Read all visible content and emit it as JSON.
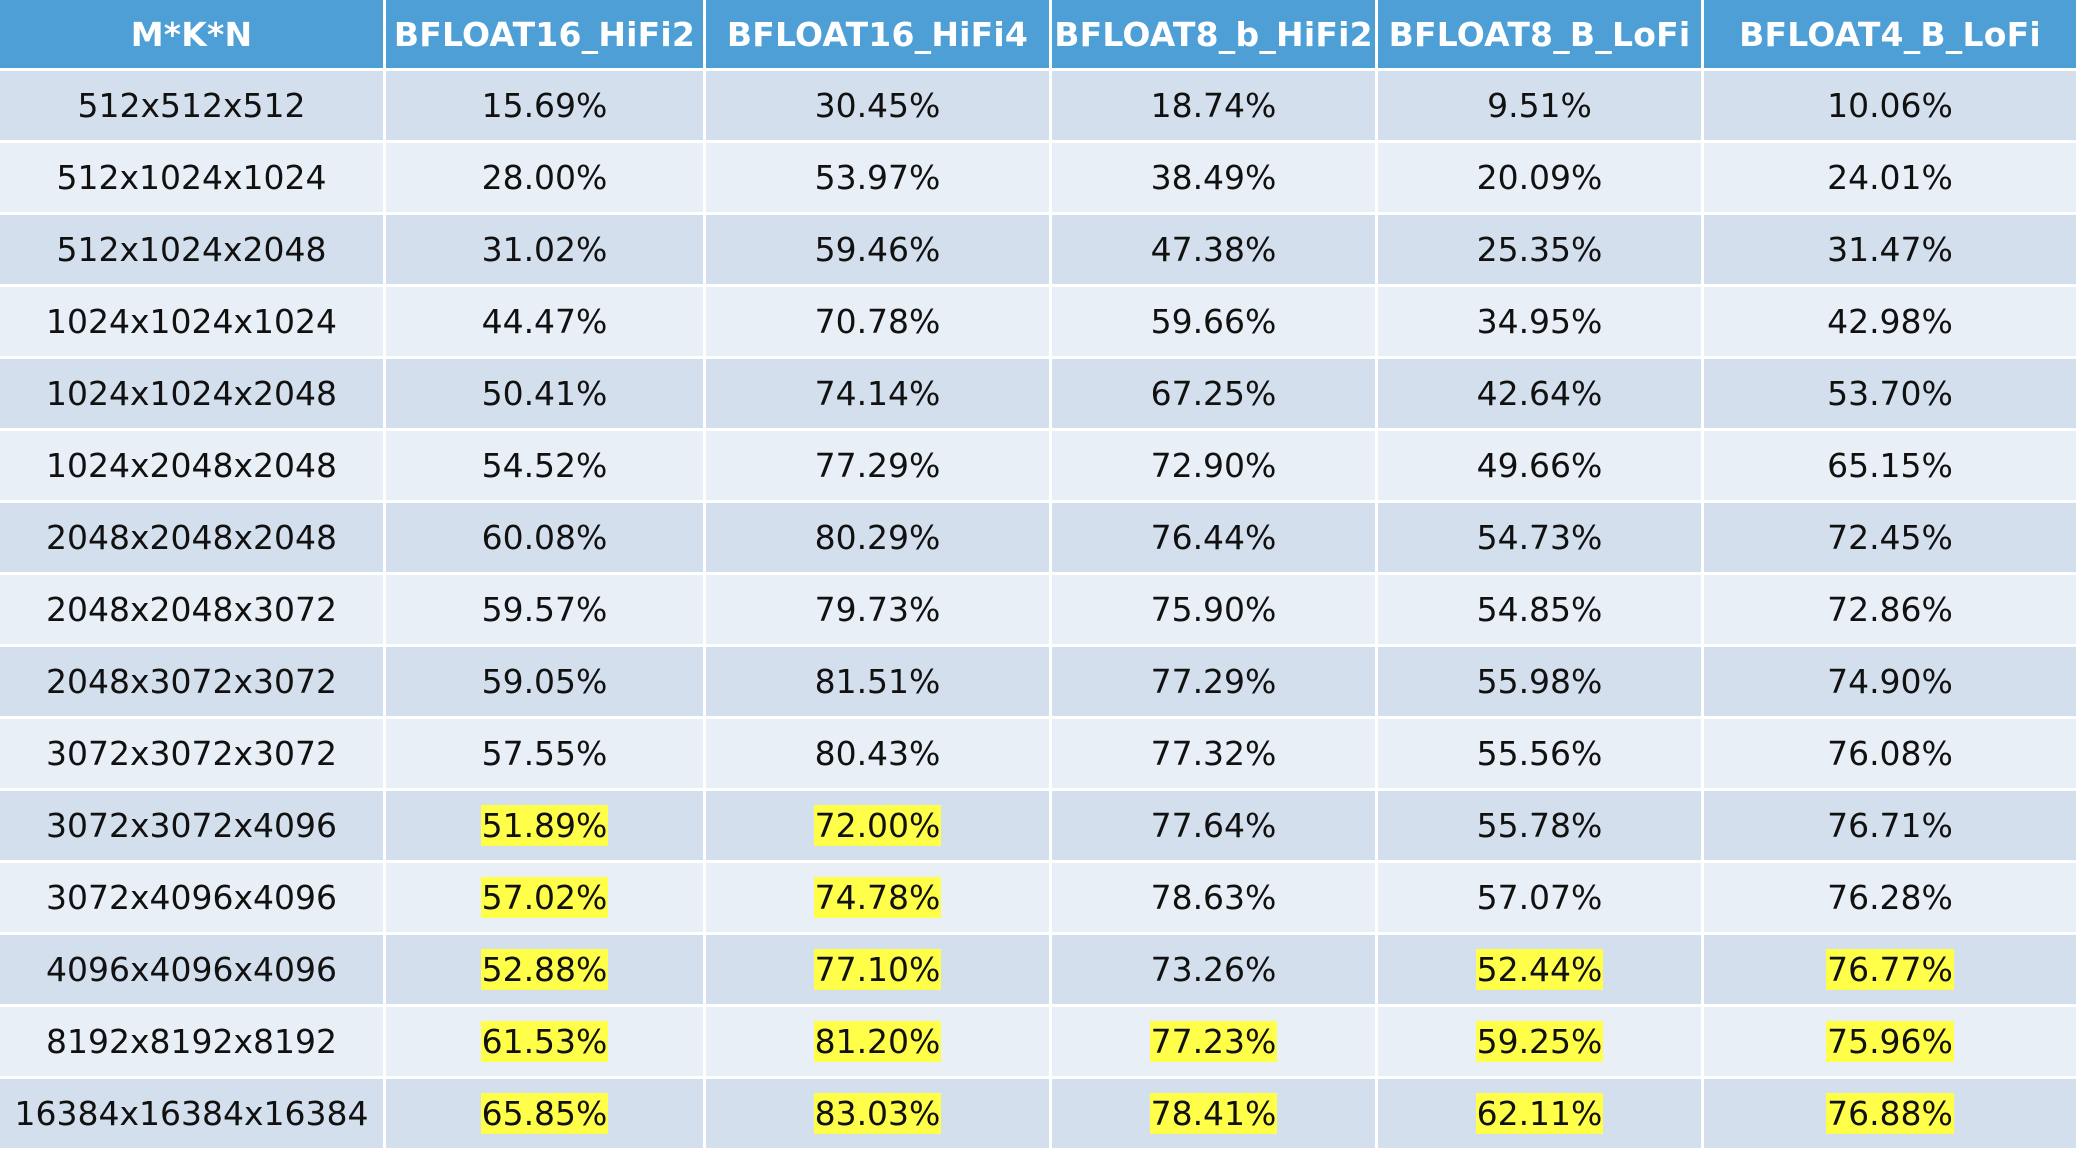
{
  "chart_data": {
    "type": "table",
    "columns": [
      "M*K*N",
      "BFLOAT16_HiFi2",
      "BFLOAT16_HiFi4",
      "BFLOAT8_b_HiFi2",
      "BFLOAT8_B_LoFi",
      "BFLOAT4_B_LoFi"
    ],
    "rows": [
      {
        "label": "512x512x512",
        "values": [
          "15.69%",
          "30.45%",
          "18.74%",
          "9.51%",
          "10.06%"
        ],
        "highlighted": [
          false,
          false,
          false,
          false,
          false
        ]
      },
      {
        "label": "512x1024x1024",
        "values": [
          "28.00%",
          "53.97%",
          "38.49%",
          "20.09%",
          "24.01%"
        ],
        "highlighted": [
          false,
          false,
          false,
          false,
          false
        ]
      },
      {
        "label": "512x1024x2048",
        "values": [
          "31.02%",
          "59.46%",
          "47.38%",
          "25.35%",
          "31.47%"
        ],
        "highlighted": [
          false,
          false,
          false,
          false,
          false
        ]
      },
      {
        "label": "1024x1024x1024",
        "values": [
          "44.47%",
          "70.78%",
          "59.66%",
          "34.95%",
          "42.98%"
        ],
        "highlighted": [
          false,
          false,
          false,
          false,
          false
        ]
      },
      {
        "label": "1024x1024x2048",
        "values": [
          "50.41%",
          "74.14%",
          "67.25%",
          "42.64%",
          "53.70%"
        ],
        "highlighted": [
          false,
          false,
          false,
          false,
          false
        ]
      },
      {
        "label": "1024x2048x2048",
        "values": [
          "54.52%",
          "77.29%",
          "72.90%",
          "49.66%",
          "65.15%"
        ],
        "highlighted": [
          false,
          false,
          false,
          false,
          false
        ]
      },
      {
        "label": "2048x2048x2048",
        "values": [
          "60.08%",
          "80.29%",
          "76.44%",
          "54.73%",
          "72.45%"
        ],
        "highlighted": [
          false,
          false,
          false,
          false,
          false
        ]
      },
      {
        "label": "2048x2048x3072",
        "values": [
          "59.57%",
          "79.73%",
          "75.90%",
          "54.85%",
          "72.86%"
        ],
        "highlighted": [
          false,
          false,
          false,
          false,
          false
        ]
      },
      {
        "label": "2048x3072x3072",
        "values": [
          "59.05%",
          "81.51%",
          "77.29%",
          "55.98%",
          "74.90%"
        ],
        "highlighted": [
          false,
          false,
          false,
          false,
          false
        ]
      },
      {
        "label": "3072x3072x3072",
        "values": [
          "57.55%",
          "80.43%",
          "77.32%",
          "55.56%",
          "76.08%"
        ],
        "highlighted": [
          false,
          false,
          false,
          false,
          false
        ]
      },
      {
        "label": "3072x3072x4096",
        "values": [
          "51.89%",
          "72.00%",
          "77.64%",
          "55.78%",
          "76.71%"
        ],
        "highlighted": [
          true,
          true,
          false,
          false,
          false
        ]
      },
      {
        "label": "3072x4096x4096",
        "values": [
          "57.02%",
          "74.78%",
          "78.63%",
          "57.07%",
          "76.28%"
        ],
        "highlighted": [
          true,
          true,
          false,
          false,
          false
        ]
      },
      {
        "label": "4096x4096x4096",
        "values": [
          "52.88%",
          "77.10%",
          "73.26%",
          "52.44%",
          "76.77%"
        ],
        "highlighted": [
          true,
          true,
          false,
          true,
          true
        ]
      },
      {
        "label": "8192x8192x8192",
        "values": [
          "61.53%",
          "81.20%",
          "77.23%",
          "59.25%",
          "75.96%"
        ],
        "highlighted": [
          true,
          true,
          true,
          true,
          true
        ]
      },
      {
        "label": "16384x16384x16384",
        "values": [
          "65.85%",
          "83.03%",
          "78.41%",
          "62.11%",
          "76.88%"
        ],
        "highlighted": [
          true,
          true,
          true,
          true,
          true
        ]
      }
    ]
  },
  "colors": {
    "header_bg": "#4d9fd6",
    "header_text": "#ffffff",
    "row_odd_bg": "#d4dfed",
    "row_even_bg": "#e9eff6",
    "highlight": "#ffff4a",
    "cell_text": "#111111"
  }
}
